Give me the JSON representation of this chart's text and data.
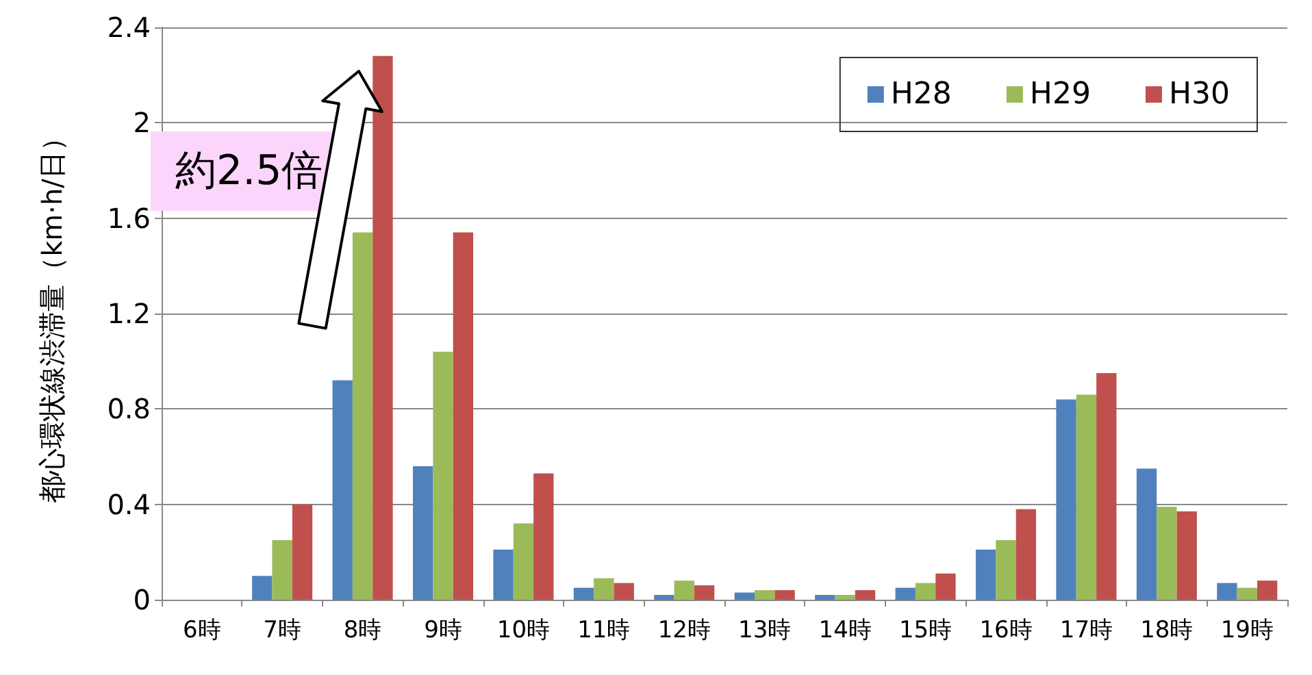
{
  "chart_data": {
    "type": "bar",
    "ylabel": "都心環状線渋滞量（km·h/日）",
    "categories": [
      "6時",
      "7時",
      "8時",
      "9時",
      "10時",
      "11時",
      "12時",
      "13時",
      "14時",
      "15時",
      "16時",
      "17時",
      "18時",
      "19時"
    ],
    "series": [
      {
        "name": "H28",
        "color": "#4f81bd",
        "values": [
          0,
          0.1,
          0.92,
          0.56,
          0.21,
          0.05,
          0.02,
          0.03,
          0.02,
          0.05,
          0.21,
          0.84,
          0.55,
          0.07
        ]
      },
      {
        "name": "H29",
        "color": "#9bbb59",
        "values": [
          0,
          0.25,
          1.54,
          1.04,
          0.32,
          0.09,
          0.08,
          0.04,
          0.02,
          0.07,
          0.25,
          0.86,
          0.39,
          0.05
        ]
      },
      {
        "name": "H30",
        "color": "#c0504d",
        "values": [
          0,
          0.4,
          2.28,
          1.54,
          0.53,
          0.07,
          0.06,
          0.04,
          0.04,
          0.11,
          0.38,
          0.95,
          0.37,
          0.08
        ]
      }
    ],
    "ylim": [
      0,
      2.4
    ],
    "yticks": [
      0,
      0.4,
      0.8,
      1.2,
      1.6,
      2,
      2.4
    ],
    "grid": "y",
    "legend": "top right",
    "annotations": [
      "約2.5倍"
    ]
  }
}
